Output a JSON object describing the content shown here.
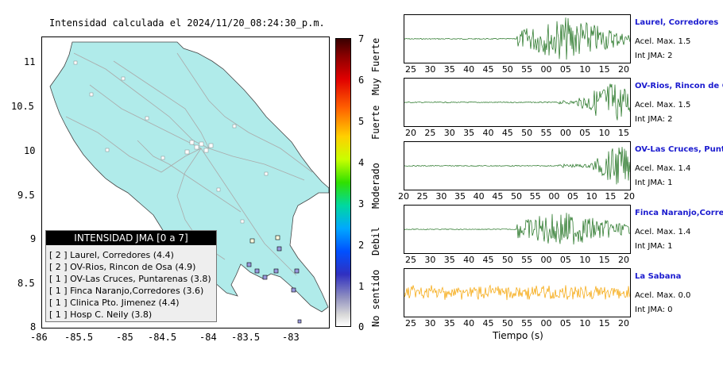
{
  "map": {
    "title": "Intensidad calculada el 2024/11/20_08:24:30_p.m.",
    "x_ticks": [
      "-86",
      "-85.5",
      "-85",
      "-84.5",
      "-84",
      "-83.5",
      "-83"
    ],
    "y_ticks": [
      "11",
      "10.5",
      "10",
      "9.5",
      "9",
      "8.5",
      "8"
    ],
    "land_color": "#b0ebea",
    "road_color": "#aaaaaa"
  },
  "legend": {
    "title": "INTENSIDAD JMA [0 a 7]",
    "rows": [
      "[ 2 ]  Laurel, Corredores (4.4)",
      "[ 2 ]  OV-Rios, Rincon de Osa (4.9)",
      "[ 1 ]  OV-Las Cruces, Puntarenas (3.8)",
      "[ 1 ]  Finca Naranjo,Corredores (3.6)",
      "[ 1 ]  Clinica Pto. Jimenez (4.4)",
      "[ 1 ]  Hosp C. Neily (3.8)"
    ]
  },
  "colorbar": {
    "ticks": [
      "7",
      "6",
      "5",
      "4",
      "3",
      "2",
      "1",
      "0"
    ],
    "words": [
      "Muy Fuerte",
      "Fuerte",
      "Moderado",
      "Debil",
      "No sentido"
    ]
  },
  "stations": [
    {
      "name": "Laurel, Corredores",
      "acel": "Acel. Max. 1.5",
      "int": "Int JMA: 2",
      "color": "#1a6e1a",
      "ticks": [
        "25",
        "30",
        "35",
        "40",
        "45",
        "50",
        "55",
        "00",
        "05",
        "10",
        "15",
        "20"
      ]
    },
    {
      "name": "OV-Rios, Rincon de Os",
      "acel": "Acel. Max. 1.5",
      "int": "Int JMA: 2",
      "color": "#1a6e1a",
      "ticks": [
        "20",
        "25",
        "30",
        "35",
        "40",
        "45",
        "50",
        "55",
        "00",
        "05",
        "10",
        "15"
      ]
    },
    {
      "name": "OV-Las Cruces, Puntar",
      "acel": "Acel. Max. 1.4",
      "int": "Int JMA: 1",
      "color": "#1a6e1a",
      "ticks": [
        "20",
        "25",
        "30",
        "35",
        "40",
        "45",
        "50",
        "55",
        "00",
        "05",
        "10",
        "15",
        "20"
      ]
    },
    {
      "name": "Finca Naranjo,Corredor",
      "acel": "Acel. Max. 1.4",
      "int": "Int JMA: 1",
      "color": "#1a6e1a",
      "ticks": [
        "25",
        "30",
        "35",
        "40",
        "45",
        "50",
        "55",
        "00",
        "05",
        "10",
        "15",
        "20"
      ]
    },
    {
      "name": "La Sabana",
      "acel": "Acel. Max. 0.0",
      "int": "Int JMA: 0",
      "color": "#f5a300",
      "ticks": [
        "25",
        "30",
        "35",
        "40",
        "45",
        "50",
        "55",
        "00",
        "05",
        "10",
        "15",
        "20"
      ]
    }
  ],
  "time_axis_label": "Tiempo (s)"
}
